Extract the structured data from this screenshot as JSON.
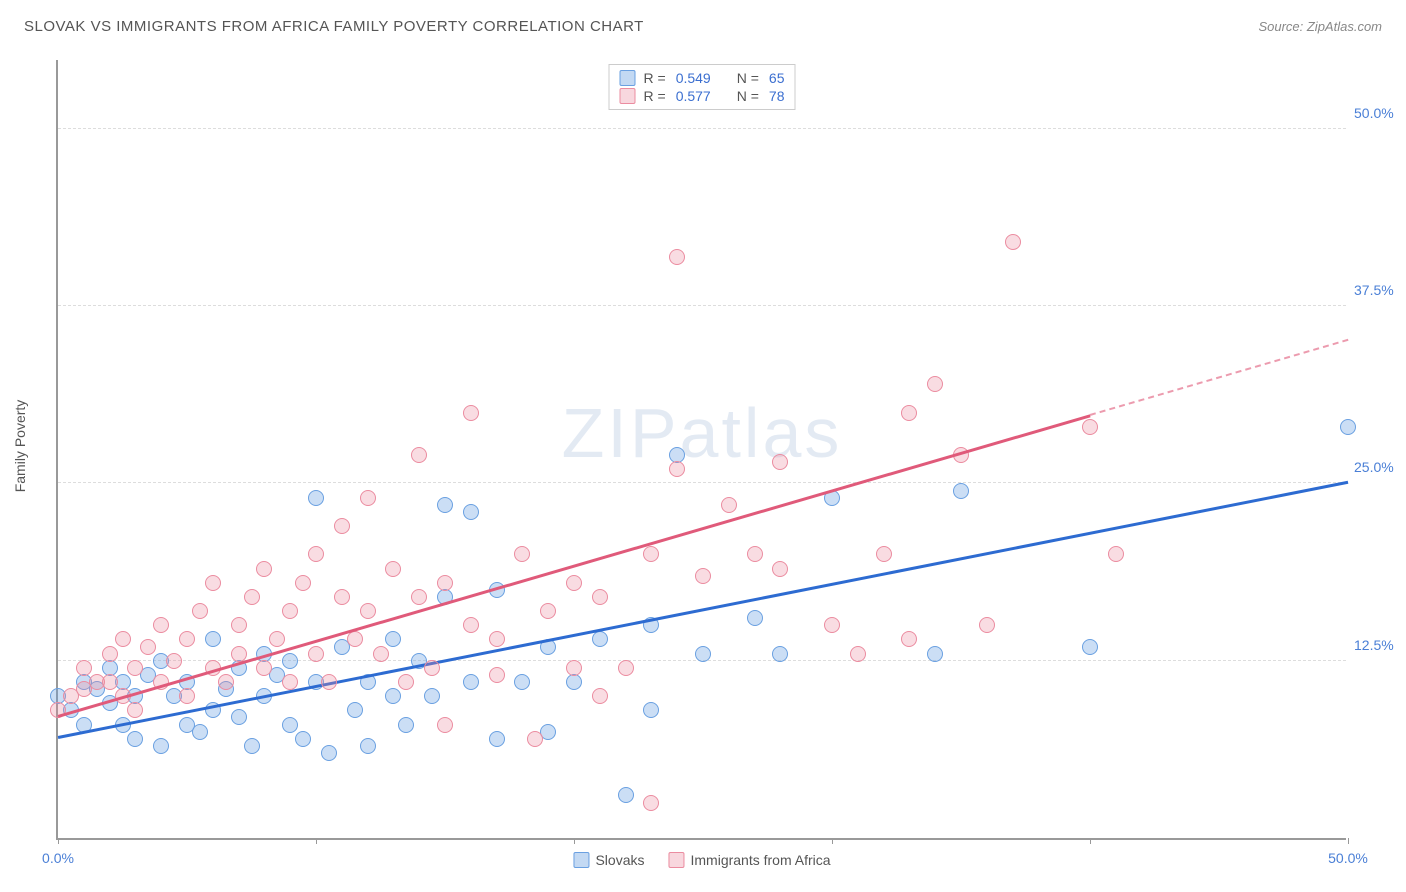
{
  "title": "SLOVAK VS IMMIGRANTS FROM AFRICA FAMILY POVERTY CORRELATION CHART",
  "source": "Source: ZipAtlas.com",
  "ylabel": "Family Poverty",
  "watermark": "ZIPatlas",
  "chart": {
    "type": "scatter",
    "xlim": [
      0,
      50
    ],
    "ylim": [
      0,
      55
    ],
    "x_ticks": [
      0,
      10,
      20,
      30,
      40,
      50
    ],
    "x_tick_labels": {
      "0": "0.0%",
      "50": "50.0%"
    },
    "y_gridlines": [
      12.5,
      25.0,
      37.5,
      50.0
    ],
    "y_tick_labels": [
      "12.5%",
      "25.0%",
      "37.5%",
      "50.0%"
    ],
    "background_color": "#ffffff",
    "grid_color": "#dddddd",
    "axis_color": "#999999",
    "tick_label_color": "#4a7fd6",
    "marker_size": 16,
    "series": [
      {
        "id": "slovaks",
        "label": "Slovaks",
        "color_fill": "rgba(106,160,225,0.35)",
        "color_stroke": "#6aa0e1",
        "marker_style": "circle",
        "R": 0.549,
        "N": 65,
        "trend": {
          "x0": 0,
          "y0": 7.0,
          "x1": 50,
          "y1": 25.0,
          "solid_until_x": 50,
          "color": "#2d6bd1",
          "width": 2.5
        },
        "points": [
          [
            0,
            10
          ],
          [
            0.5,
            9
          ],
          [
            1,
            11
          ],
          [
            1,
            8
          ],
          [
            1.5,
            10.5
          ],
          [
            2,
            9.5
          ],
          [
            2,
            12
          ],
          [
            2.5,
            8
          ],
          [
            2.5,
            11
          ],
          [
            3,
            10
          ],
          [
            3,
            7
          ],
          [
            3.5,
            11.5
          ],
          [
            4,
            6.5
          ],
          [
            4,
            12.5
          ],
          [
            4.5,
            10
          ],
          [
            5,
            8
          ],
          [
            5,
            11
          ],
          [
            5.5,
            7.5
          ],
          [
            6,
            9
          ],
          [
            6,
            14
          ],
          [
            6.5,
            10.5
          ],
          [
            7,
            8.5
          ],
          [
            7,
            12
          ],
          [
            7.5,
            6.5
          ],
          [
            8,
            13
          ],
          [
            8,
            10
          ],
          [
            8.5,
            11.5
          ],
          [
            9,
            8
          ],
          [
            9,
            12.5
          ],
          [
            9.5,
            7
          ],
          [
            10,
            11
          ],
          [
            10,
            24
          ],
          [
            10.5,
            6
          ],
          [
            11,
            13.5
          ],
          [
            11.5,
            9
          ],
          [
            12,
            11
          ],
          [
            12,
            6.5
          ],
          [
            13,
            10
          ],
          [
            13,
            14
          ],
          [
            13.5,
            8
          ],
          [
            14,
            12.5
          ],
          [
            14.5,
            10
          ],
          [
            15,
            23.5
          ],
          [
            15,
            17
          ],
          [
            16,
            23
          ],
          [
            16,
            11
          ],
          [
            17,
            17.5
          ],
          [
            17,
            7
          ],
          [
            18,
            11
          ],
          [
            19,
            13.5
          ],
          [
            19,
            7.5
          ],
          [
            20,
            11
          ],
          [
            21,
            14
          ],
          [
            22,
            3
          ],
          [
            23,
            15
          ],
          [
            23,
            9
          ],
          [
            24,
            27
          ],
          [
            25,
            13
          ],
          [
            27,
            15.5
          ],
          [
            28,
            13
          ],
          [
            30,
            24
          ],
          [
            34,
            13
          ],
          [
            35,
            24.5
          ],
          [
            40,
            13.5
          ],
          [
            50,
            29
          ]
        ]
      },
      {
        "id": "africa",
        "label": "Immigrants from Africa",
        "color_fill": "rgba(235,140,160,0.3)",
        "color_stroke": "#eb8ca0",
        "marker_style": "circle",
        "R": 0.577,
        "N": 78,
        "trend": {
          "x0": 0,
          "y0": 8.5,
          "x1": 50,
          "y1": 35.0,
          "solid_until_x": 40,
          "color": "#e05a7a",
          "width": 2.5
        },
        "points": [
          [
            0,
            9
          ],
          [
            0.5,
            10
          ],
          [
            1,
            12
          ],
          [
            1,
            10.5
          ],
          [
            1.5,
            11
          ],
          [
            2,
            13
          ],
          [
            2,
            11
          ],
          [
            2.5,
            10
          ],
          [
            2.5,
            14
          ],
          [
            3,
            12
          ],
          [
            3,
            9
          ],
          [
            3.5,
            13.5
          ],
          [
            4,
            11
          ],
          [
            4,
            15
          ],
          [
            4.5,
            12.5
          ],
          [
            5,
            10
          ],
          [
            5,
            14
          ],
          [
            5.5,
            16
          ],
          [
            6,
            12
          ],
          [
            6,
            18
          ],
          [
            6.5,
            11
          ],
          [
            7,
            15
          ],
          [
            7,
            13
          ],
          [
            7.5,
            17
          ],
          [
            8,
            12
          ],
          [
            8,
            19
          ],
          [
            8.5,
            14
          ],
          [
            9,
            11
          ],
          [
            9,
            16
          ],
          [
            9.5,
            18
          ],
          [
            10,
            13
          ],
          [
            10,
            20
          ],
          [
            10.5,
            11
          ],
          [
            11,
            17
          ],
          [
            11,
            22
          ],
          [
            11.5,
            14
          ],
          [
            12,
            24
          ],
          [
            12,
            16
          ],
          [
            12.5,
            13
          ],
          [
            13,
            19
          ],
          [
            13.5,
            11
          ],
          [
            14,
            17
          ],
          [
            14,
            27
          ],
          [
            14.5,
            12
          ],
          [
            15,
            18
          ],
          [
            15,
            8
          ],
          [
            16,
            15
          ],
          [
            16,
            30
          ],
          [
            17,
            14
          ],
          [
            17,
            11.5
          ],
          [
            18,
            20
          ],
          [
            18.5,
            7
          ],
          [
            19,
            16
          ],
          [
            20,
            12
          ],
          [
            20,
            18
          ],
          [
            21,
            10
          ],
          [
            21,
            17
          ],
          [
            22,
            12
          ],
          [
            23,
            20
          ],
          [
            23,
            2.5
          ],
          [
            24,
            41
          ],
          [
            24,
            26
          ],
          [
            25,
            18.5
          ],
          [
            26,
            23.5
          ],
          [
            27,
            20
          ],
          [
            28,
            26.5
          ],
          [
            28,
            19
          ],
          [
            30,
            15
          ],
          [
            31,
            13
          ],
          [
            32,
            20
          ],
          [
            33,
            30
          ],
          [
            33,
            14
          ],
          [
            34,
            32
          ],
          [
            35,
            27
          ],
          [
            36,
            15
          ],
          [
            37,
            42
          ],
          [
            40,
            29
          ],
          [
            41,
            20
          ]
        ]
      }
    ]
  },
  "legend_top": [
    {
      "swatchClass": "blue",
      "r_label": "R =",
      "r_value": "0.549",
      "n_label": "N =",
      "n_value": "65"
    },
    {
      "swatchClass": "pink",
      "r_label": "R =",
      "r_value": "0.577",
      "n_label": "N =",
      "n_value": "78"
    }
  ],
  "legend_bottom": [
    {
      "swatchClass": "blue",
      "label": "Slovaks"
    },
    {
      "swatchClass": "pink",
      "label": "Immigrants from Africa"
    }
  ]
}
